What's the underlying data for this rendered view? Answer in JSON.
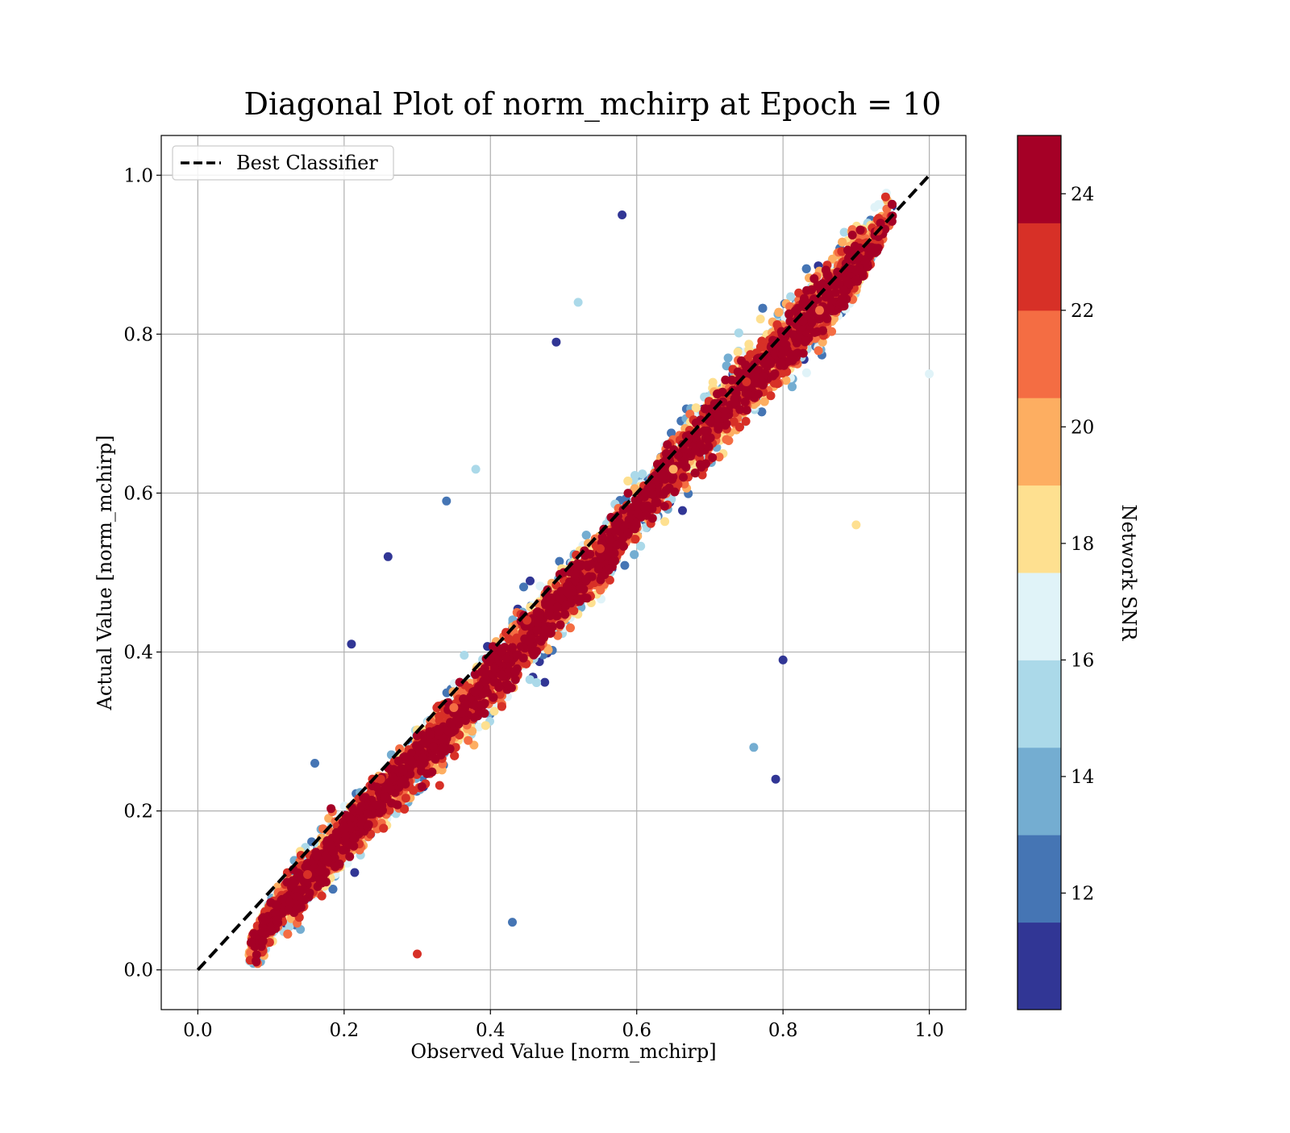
{
  "chart_data": {
    "type": "scatter",
    "title": "Diagonal Plot of norm_mchirp at Epoch = 10",
    "xlabel": "Observed Value [norm_mchirp]",
    "ylabel": "Actual Value [norm_mchirp]",
    "xlim": [
      -0.05,
      1.05
    ],
    "ylim": [
      -0.05,
      1.05
    ],
    "x_ticks": [
      "0.0",
      "0.2",
      "0.4",
      "0.6",
      "0.8",
      "1.0"
    ],
    "y_ticks": [
      "0.0",
      "0.2",
      "0.4",
      "0.6",
      "0.8",
      "1.0"
    ],
    "grid": true,
    "legend": {
      "position": "top-left",
      "entries": [
        "Best Classifier"
      ]
    },
    "reference_line": {
      "name": "Best Classifier",
      "style": "dashed",
      "color": "#000000",
      "x": [
        0.0,
        1.0
      ],
      "y": [
        0.0,
        1.0
      ]
    },
    "colorbar": {
      "label": "Network SNR",
      "range": [
        10.0,
        25.0
      ],
      "ticks": [
        "12",
        "14",
        "16",
        "18",
        "20",
        "22",
        "24"
      ],
      "colors": [
        "#313695",
        "#4575b4",
        "#74add1",
        "#abd9e9",
        "#e0f3f8",
        "#fee090",
        "#fdae61",
        "#f46d43",
        "#d73027",
        "#a50026"
      ]
    },
    "point_count_estimate": 9000,
    "point_density_note_values": {
      "x_range": [
        0.07,
        1.0
      ],
      "y_range": [
        0.0,
        1.0
      ]
    },
    "series": [
      {
        "sample_points": [
          [
            0.08,
            0.01,
            24
          ],
          [
            0.1,
            0.05,
            24
          ],
          [
            0.15,
            0.12,
            23
          ],
          [
            0.2,
            0.18,
            24
          ],
          [
            0.25,
            0.24,
            22
          ],
          [
            0.3,
            0.28,
            24
          ],
          [
            0.35,
            0.33,
            21
          ],
          [
            0.4,
            0.39,
            24
          ],
          [
            0.45,
            0.44,
            23
          ],
          [
            0.5,
            0.5,
            24
          ],
          [
            0.55,
            0.53,
            22
          ],
          [
            0.6,
            0.59,
            24
          ],
          [
            0.65,
            0.63,
            20
          ],
          [
            0.7,
            0.69,
            24
          ],
          [
            0.75,
            0.74,
            23
          ],
          [
            0.8,
            0.79,
            24
          ],
          [
            0.85,
            0.83,
            21
          ],
          [
            0.9,
            0.88,
            24
          ],
          [
            0.93,
            0.93,
            22
          ],
          [
            0.49,
            0.79,
            11
          ],
          [
            0.58,
            0.95,
            11
          ],
          [
            0.52,
            0.84,
            15
          ],
          [
            0.76,
            0.28,
            13
          ],
          [
            0.79,
            0.24,
            11
          ],
          [
            0.3,
            0.02,
            22
          ],
          [
            0.43,
            0.06,
            12
          ],
          [
            0.8,
            0.39,
            11
          ],
          [
            1.0,
            0.75,
            17
          ],
          [
            0.9,
            0.56,
            18
          ],
          [
            0.16,
            0.26,
            12
          ],
          [
            0.21,
            0.41,
            11
          ],
          [
            0.26,
            0.52,
            11
          ],
          [
            0.34,
            0.59,
            12
          ],
          [
            0.38,
            0.63,
            15
          ]
        ]
      }
    ]
  }
}
